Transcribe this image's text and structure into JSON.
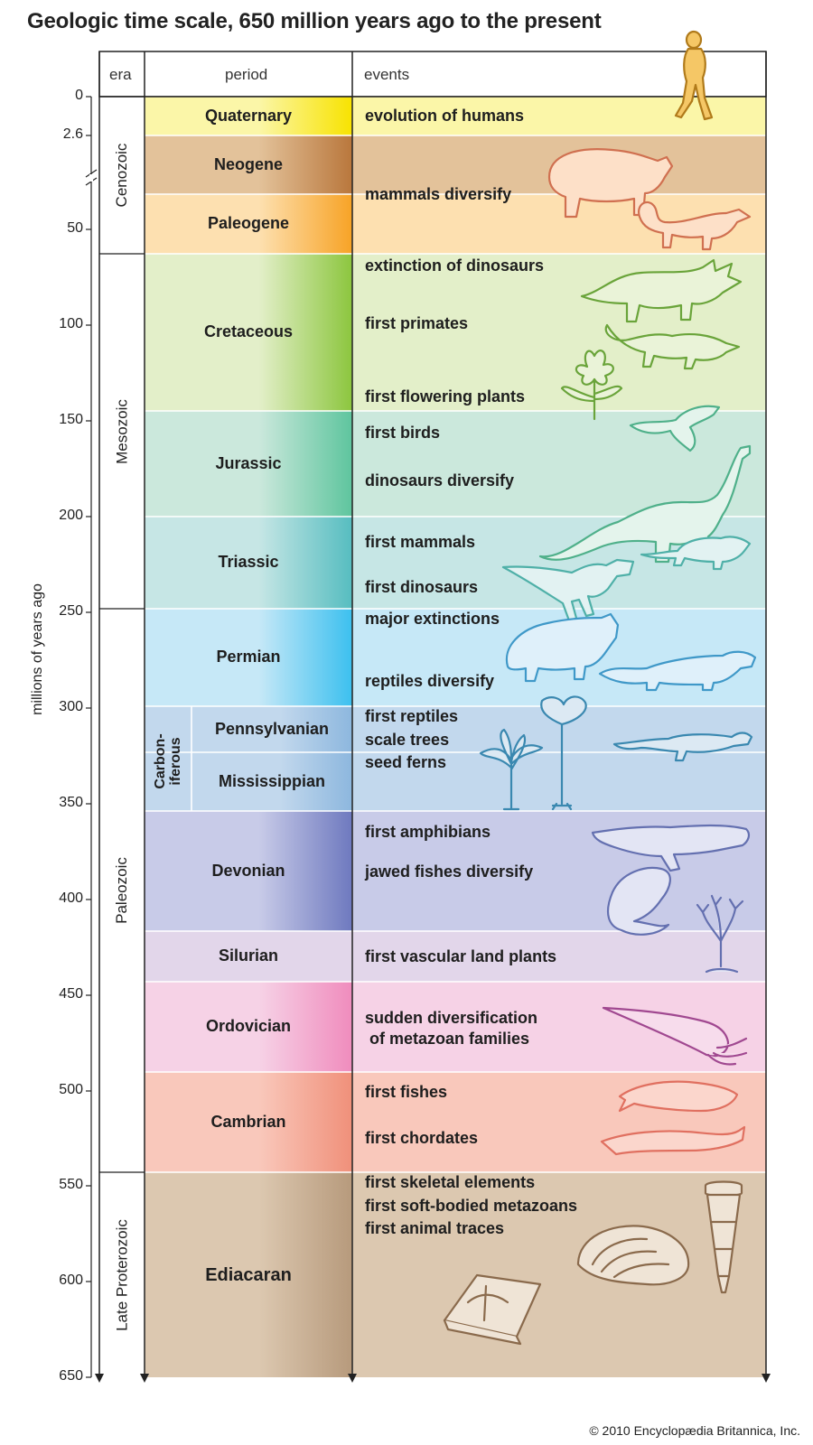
{
  "title": "Geologic time scale, 650 million years ago to the present",
  "credit": "© 2010 Encyclopædia Britannica, Inc.",
  "headers": {
    "era": "era",
    "period": "period",
    "events": "events"
  },
  "axis_label": "millions of years ago",
  "ticks": [
    "0",
    "2.6",
    "50",
    "100",
    "150",
    "200",
    "250",
    "300",
    "350",
    "400",
    "450",
    "500",
    "550",
    "600",
    "650"
  ],
  "eras": [
    {
      "name": "Cenozoic"
    },
    {
      "name": "Mesozoic"
    },
    {
      "name": "Paleozoic"
    },
    {
      "name": "Late Proterozoic"
    }
  ],
  "sub_era": "Carbon-\niferous",
  "periods": [
    {
      "name": "Quaternary",
      "color": "#fbf6a8",
      "accent": "#f8e300"
    },
    {
      "name": "Neogene",
      "color": "#e3c29a",
      "accent": "#b9773c"
    },
    {
      "name": "Paleogene",
      "color": "#fde0b0",
      "accent": "#f7a326"
    },
    {
      "name": "Cretaceous",
      "color": "#e3efc9",
      "accent": "#8cc63e"
    },
    {
      "name": "Jurassic",
      "color": "#cbe8dc",
      "accent": "#5ec59e"
    },
    {
      "name": "Triassic",
      "color": "#c6e6e5",
      "accent": "#56bdc0"
    },
    {
      "name": "Permian",
      "color": "#c6e8f7",
      "accent": "#3cc0ef"
    },
    {
      "name": "Pennsylvanian",
      "color": "#c2d8ed",
      "accent": "#8db7de"
    },
    {
      "name": "Mississippian",
      "color": "#c2d8ed",
      "accent": "#8db7de"
    },
    {
      "name": "Devonian",
      "color": "#c8cbe8",
      "accent": "#6e79bf"
    },
    {
      "name": "Silurian",
      "color": "#e2d6ea",
      "accent": "#e2d6ea"
    },
    {
      "name": "Ordovician",
      "color": "#f6d2e6",
      "accent": "#f08cbd"
    },
    {
      "name": "Cambrian",
      "color": "#f9c8bb",
      "accent": "#f0907a"
    },
    {
      "name": "Ediacaran",
      "color": "#dcc8b0",
      "accent": "#b79a7c"
    }
  ],
  "events": [
    "evolution of humans",
    "mammals diversify",
    "extinction of dinosaurs",
    "first primates",
    "first flowering plants",
    "first birds",
    "dinosaurs diversify",
    "first mammals",
    "first dinosaurs",
    "major extinctions",
    "reptiles diversify",
    "first reptiles",
    "scale trees",
    "seed ferns",
    "first amphibians",
    "jawed fishes diversify",
    "first vascular land plants",
    "sudden diversification\n of metazoan families",
    "first fishes",
    "first chordates",
    "first skeletal elements",
    "first soft-bodied metazoans",
    "first animal traces"
  ],
  "illustrations": [
    "human-figure-icon",
    "uintatherium-icon",
    "mammal-lizard-icon",
    "triceratops-icon",
    "primate-icon",
    "flower-icon",
    "bird-icon",
    "sauropod-icon",
    "dinosaur-icon",
    "small-mammal-icon",
    "dicynodont-icon",
    "reptile-icon",
    "tree-fern-icon",
    "scale-tree-icon",
    "lizard-icon",
    "amphibian-icon",
    "fish-icon",
    "land-plant-icon",
    "nautiloid-icon",
    "jawless-fish-icon",
    "chordate-icon",
    "shell-icon",
    "fossil-slab-icon",
    "cone-shell-icon"
  ]
}
